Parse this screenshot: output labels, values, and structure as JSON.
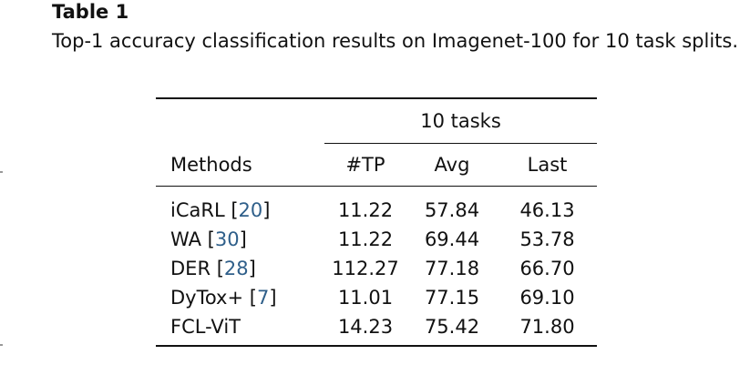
{
  "caption": {
    "label": "Table 1",
    "text": "Top-1 accuracy classification results on Imagenet-100 for 10 task splits."
  },
  "table": {
    "group_header": "10 tasks",
    "columns": [
      "Methods",
      "#TP",
      "Avg",
      "Last"
    ],
    "rows": [
      {
        "method": "iCaRL [",
        "cite": "20",
        "close": "]",
        "tp": "11.22",
        "avg": "57.84",
        "last": "46.13",
        "bold": []
      },
      {
        "method": "WA [",
        "cite": "30",
        "close": "]",
        "tp": "11.22",
        "avg": "69.44",
        "last": "53.78",
        "bold": []
      },
      {
        "method": "DER [",
        "cite": "28",
        "close": "]",
        "tp": "112.27",
        "avg": "77.18",
        "last": "66.70",
        "bold": [
          "avg"
        ]
      },
      {
        "method": "DyTox+ [",
        "cite": "7",
        "close": "]",
        "tp": "11.01",
        "avg": "77.15",
        "last": "69.10",
        "bold": []
      },
      {
        "method": "FCL-ViT",
        "cite": "",
        "close": "",
        "tp": "14.23",
        "avg": "75.42",
        "last": "71.80",
        "bold": [
          "last"
        ]
      }
    ]
  }
}
